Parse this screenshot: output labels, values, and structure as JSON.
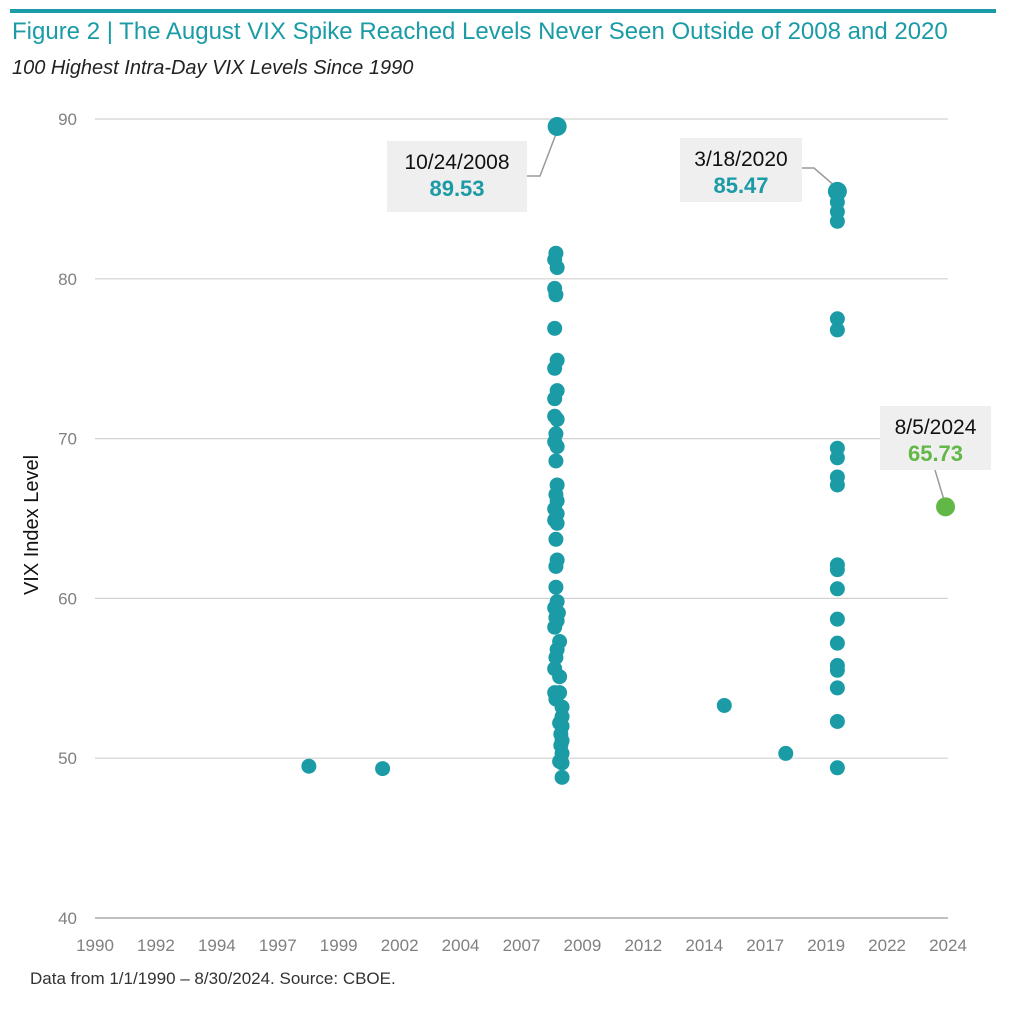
{
  "header": {
    "title": "Figure 2 | The August VIX Spike Reached Levels Never Seen Outside of 2008 and 2020",
    "subtitle": "100 Highest Intra-Day VIX Levels Since 1990"
  },
  "footnote": "Data from 1/1/1990 – 8/30/2024. Source: CBOE.",
  "colors": {
    "teal": "#1a9ba6",
    "green": "#62b846",
    "grid": "#d2d2d2",
    "callout_bg": "#efefef"
  },
  "chart_data": {
    "type": "scatter",
    "title": "The August VIX Spike Reached Levels Never Seen Outside of 2008 and 2020",
    "xlabel": "",
    "ylabel": "VIX Index Level",
    "xlim": [
      1990,
      2024.7
    ],
    "ylim": [
      40,
      90
    ],
    "x_tick_labels": [
      "1990",
      "1992",
      "1994",
      "1997",
      "1999",
      "2002",
      "2004",
      "2007",
      "2009",
      "2012",
      "2014",
      "2017",
      "2019",
      "2022",
      "2024"
    ],
    "y_ticks": [
      40,
      50,
      60,
      70,
      80,
      90
    ],
    "grid": "horizontal",
    "series": [
      {
        "name": "100 Highest Intra-Day VIX Levels",
        "color": "#1a9ba6",
        "points": [
          {
            "x": 1998.7,
            "y": 49.5
          },
          {
            "x": 2001.7,
            "y": 49.35
          },
          {
            "x": 2008.8,
            "y": 89.53
          },
          {
            "x": 2008.75,
            "y": 81.6
          },
          {
            "x": 2008.7,
            "y": 81.2
          },
          {
            "x": 2008.8,
            "y": 80.7
          },
          {
            "x": 2008.7,
            "y": 79.4
          },
          {
            "x": 2008.75,
            "y": 79.0
          },
          {
            "x": 2008.7,
            "y": 76.9
          },
          {
            "x": 2008.8,
            "y": 74.9
          },
          {
            "x": 2008.7,
            "y": 74.4
          },
          {
            "x": 2008.8,
            "y": 73.0
          },
          {
            "x": 2008.7,
            "y": 72.5
          },
          {
            "x": 2008.7,
            "y": 71.4
          },
          {
            "x": 2008.8,
            "y": 71.2
          },
          {
            "x": 2008.75,
            "y": 70.3
          },
          {
            "x": 2008.7,
            "y": 69.8
          },
          {
            "x": 2008.8,
            "y": 69.5
          },
          {
            "x": 2008.75,
            "y": 68.6
          },
          {
            "x": 2008.8,
            "y": 67.1
          },
          {
            "x": 2008.75,
            "y": 66.5
          },
          {
            "x": 2008.8,
            "y": 66.1
          },
          {
            "x": 2008.7,
            "y": 65.6
          },
          {
            "x": 2008.8,
            "y": 65.3
          },
          {
            "x": 2008.7,
            "y": 64.9
          },
          {
            "x": 2008.8,
            "y": 64.7
          },
          {
            "x": 2008.75,
            "y": 63.7
          },
          {
            "x": 2008.8,
            "y": 62.4
          },
          {
            "x": 2008.75,
            "y": 62.0
          },
          {
            "x": 2008.75,
            "y": 60.7
          },
          {
            "x": 2008.8,
            "y": 59.8
          },
          {
            "x": 2008.7,
            "y": 59.4
          },
          {
            "x": 2008.85,
            "y": 59.1
          },
          {
            "x": 2008.75,
            "y": 58.8
          },
          {
            "x": 2008.8,
            "y": 58.6
          },
          {
            "x": 2008.7,
            "y": 58.2
          },
          {
            "x": 2008.9,
            "y": 57.3
          },
          {
            "x": 2008.8,
            "y": 56.8
          },
          {
            "x": 2008.75,
            "y": 56.3
          },
          {
            "x": 2008.7,
            "y": 55.6
          },
          {
            "x": 2008.9,
            "y": 55.1
          },
          {
            "x": 2008.7,
            "y": 54.1
          },
          {
            "x": 2008.9,
            "y": 54.1
          },
          {
            "x": 2008.75,
            "y": 53.7
          },
          {
            "x": 2009.0,
            "y": 53.2
          },
          {
            "x": 2009.0,
            "y": 52.6
          },
          {
            "x": 2008.9,
            "y": 52.2
          },
          {
            "x": 2009.0,
            "y": 52.0
          },
          {
            "x": 2008.95,
            "y": 51.5
          },
          {
            "x": 2009.0,
            "y": 51.1
          },
          {
            "x": 2008.95,
            "y": 50.8
          },
          {
            "x": 2009.0,
            "y": 50.3
          },
          {
            "x": 2008.9,
            "y": 49.8
          },
          {
            "x": 2009.0,
            "y": 49.7
          },
          {
            "x": 2009.0,
            "y": 48.8
          },
          {
            "x": 2015.6,
            "y": 53.3
          },
          {
            "x": 2018.1,
            "y": 50.3
          },
          {
            "x": 2020.2,
            "y": 85.47
          },
          {
            "x": 2020.2,
            "y": 84.8
          },
          {
            "x": 2020.2,
            "y": 84.2
          },
          {
            "x": 2020.2,
            "y": 83.6
          },
          {
            "x": 2020.2,
            "y": 77.5
          },
          {
            "x": 2020.2,
            "y": 76.8
          },
          {
            "x": 2020.2,
            "y": 69.4
          },
          {
            "x": 2020.2,
            "y": 68.8
          },
          {
            "x": 2020.2,
            "y": 67.6
          },
          {
            "x": 2020.2,
            "y": 67.1
          },
          {
            "x": 2020.2,
            "y": 62.1
          },
          {
            "x": 2020.2,
            "y": 61.8
          },
          {
            "x": 2020.2,
            "y": 60.6
          },
          {
            "x": 2020.2,
            "y": 58.7
          },
          {
            "x": 2020.2,
            "y": 57.2
          },
          {
            "x": 2020.2,
            "y": 55.8
          },
          {
            "x": 2020.2,
            "y": 55.5
          },
          {
            "x": 2020.2,
            "y": 54.4
          },
          {
            "x": 2020.2,
            "y": 52.3
          },
          {
            "x": 2020.2,
            "y": 49.4
          }
        ]
      },
      {
        "name": "August 2024",
        "color": "#62b846",
        "points": [
          {
            "x": 2024.6,
            "y": 65.73
          }
        ]
      }
    ],
    "annotations": [
      {
        "date": "10/24/2008",
        "value": "89.53",
        "x": 2008.8,
        "y": 89.53,
        "color": "#1a9ba6"
      },
      {
        "date": "3/18/2020",
        "value": "85.47",
        "x": 2020.2,
        "y": 85.47,
        "color": "#1a9ba6"
      },
      {
        "date": "8/5/2024",
        "value": "65.73",
        "x": 2024.6,
        "y": 65.73,
        "color": "#62b846"
      }
    ]
  }
}
